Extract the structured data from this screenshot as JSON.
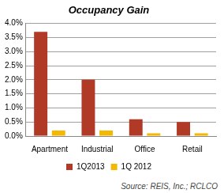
{
  "chart_data": {
    "type": "bar",
    "title": "Occupancy Gain",
    "categories": [
      "Apartment",
      "Industrial",
      "Office",
      "Retail"
    ],
    "series": [
      {
        "name": "1Q2013",
        "color": "#b03a26",
        "values": [
          3.7,
          2.0,
          0.6,
          0.5
        ]
      },
      {
        "name": "1Q 2012",
        "color": "#f5b800",
        "values": [
          0.2,
          0.2,
          0.1,
          0.1
        ]
      }
    ],
    "ylim": [
      0,
      4
    ],
    "yticks": [
      {
        "value": 0,
        "label": "0.0%"
      },
      {
        "value": 0.5,
        "label": "0.5%"
      },
      {
        "value": 1,
        "label": "1.0%"
      },
      {
        "value": 1.5,
        "label": "1.5%"
      },
      {
        "value": 2,
        "label": "2.0%"
      },
      {
        "value": 2.5,
        "label": "2.5%"
      },
      {
        "value": 3,
        "label": "3.0%"
      },
      {
        "value": 3.5,
        "label": "3.5%"
      },
      {
        "value": 4,
        "label": "4.0%"
      }
    ],
    "grid": true,
    "legend": "bottom",
    "annotations": [
      "Source: REIS, Inc.; RCLCO"
    ]
  }
}
